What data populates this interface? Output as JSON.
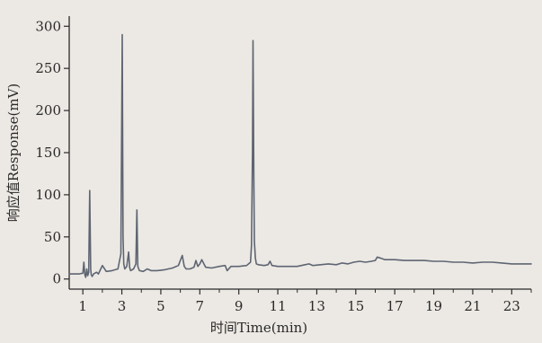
{
  "chart_data": {
    "type": "line",
    "title": "",
    "xlabel": "时间Time(min)",
    "ylabel": "响应值Response(mV)",
    "xlim": [
      0.3,
      24
    ],
    "ylim": [
      -12,
      312
    ],
    "x_ticks": [
      1,
      3,
      5,
      7,
      9,
      11,
      13,
      15,
      17,
      19,
      21,
      23
    ],
    "x_tick_labels": [
      "1",
      "3",
      "5",
      "7",
      "9",
      "11",
      "13",
      "15",
      "17",
      "19",
      "21",
      "23"
    ],
    "y_ticks": [
      0,
      50,
      100,
      150,
      200,
      250,
      300
    ],
    "y_tick_labels": [
      "0",
      "50",
      "100",
      "150",
      "200",
      "250",
      "300"
    ],
    "grid": false,
    "series": [
      {
        "name": "",
        "color": "#5e6572",
        "x": [
          0.3,
          0.8,
          1.0,
          1.05,
          1.1,
          1.15,
          1.2,
          1.25,
          1.3,
          1.35,
          1.4,
          1.43,
          1.48,
          1.55,
          1.7,
          1.8,
          2.0,
          2.2,
          2.5,
          2.8,
          2.95,
          3.02,
          3.06,
          3.1,
          3.15,
          3.25,
          3.35,
          3.4,
          3.45,
          3.6,
          3.72,
          3.77,
          3.82,
          3.9,
          4.1,
          4.3,
          4.5,
          4.8,
          5.2,
          5.6,
          5.9,
          6.1,
          6.2,
          6.3,
          6.5,
          6.7,
          6.8,
          6.9,
          7.0,
          7.1,
          7.3,
          7.6,
          8.0,
          8.3,
          8.4,
          8.6,
          9.0,
          9.4,
          9.6,
          9.65,
          9.7,
          9.73,
          9.77,
          9.8,
          9.85,
          9.9,
          10.0,
          10.3,
          10.5,
          10.6,
          10.7,
          11.0,
          11.5,
          12.0,
          12.4,
          12.6,
          12.8,
          13.2,
          13.6,
          14.0,
          14.3,
          14.6,
          14.9,
          15.2,
          15.5,
          15.8,
          16.0,
          16.1,
          16.25,
          16.5,
          17.0,
          17.5,
          18.0,
          18.5,
          19.0,
          19.5,
          20.0,
          20.5,
          21.0,
          21.5,
          22.0,
          22.5,
          23.0,
          23.5,
          24.0
        ],
        "y": [
          6,
          6,
          7,
          20,
          5,
          2,
          12,
          4,
          8,
          105,
          12,
          5,
          3,
          6,
          8,
          6,
          16,
          9,
          10,
          12,
          30,
          290,
          50,
          18,
          12,
          15,
          32,
          14,
          10,
          12,
          18,
          82,
          15,
          10,
          9,
          12,
          10,
          10,
          11,
          13,
          16,
          28,
          15,
          12,
          12,
          14,
          22,
          15,
          18,
          23,
          14,
          13,
          15,
          16,
          10,
          15,
          15,
          16,
          20,
          40,
          150,
          283,
          120,
          45,
          25,
          18,
          17,
          16,
          17,
          21,
          16,
          15,
          15,
          15,
          17,
          18,
          16,
          17,
          18,
          17,
          19,
          18,
          20,
          21,
          20,
          21,
          22,
          26,
          25,
          23,
          23,
          22,
          22,
          22,
          21,
          21,
          20,
          20,
          19,
          20,
          20,
          19,
          18,
          18,
          18
        ]
      }
    ]
  }
}
